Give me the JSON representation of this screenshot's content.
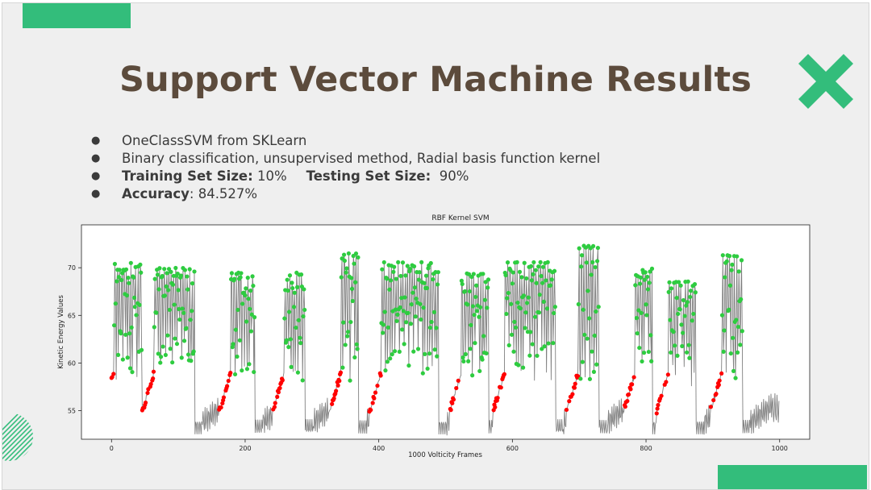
{
  "slide": {
    "title": "Support Vector Machine Results",
    "accent_color": "#33bd7b",
    "icons": [
      "x-icon",
      "diagonal-stripes"
    ]
  },
  "bullets": {
    "b1": {
      "text": "OneClassSVM from SKLearn"
    },
    "b2": {
      "text": "Binary classification, unsupervised method, Radial basis function kernel"
    },
    "b3": {
      "train_label": "Training Set Size:",
      "train_value": " 10%",
      "test_label": "Testing Set Size:",
      "test_value": "  90%"
    },
    "b4": {
      "acc_label": "Accuracy",
      "acc_value": ": 84.527%"
    }
  },
  "chart_data": {
    "type": "scatter",
    "title": "RBF Kernel SVM",
    "xlabel": "1000 Volticity Frames",
    "ylabel": "Kinetic Energy Values",
    "xlim": [
      -45,
      1045
    ],
    "ylim": [
      52,
      74.5
    ],
    "xticks": [
      0,
      200,
      400,
      600,
      800,
      1000
    ],
    "yticks": [
      55,
      60,
      65,
      70
    ],
    "grid": false,
    "line_color": "#808080",
    "series": [
      {
        "color": "#2ecc40"
      },
      {
        "color": "#ff0000"
      }
    ],
    "peaks": [
      {
        "x0": 0,
        "width": 48,
        "min": 54.5,
        "max": 70.5,
        "pattern": "spike"
      },
      {
        "x0": 60,
        "width": 65,
        "min": 55.5,
        "max": 72.0,
        "pattern": "dense"
      },
      {
        "x0": 175,
        "width": 40,
        "min": 55.0,
        "max": 71.5,
        "pattern": "dense"
      },
      {
        "x0": 255,
        "width": 35,
        "min": 55.0,
        "max": 71.5,
        "pattern": "dense"
      },
      {
        "x0": 340,
        "width": 30,
        "min": 54.5,
        "max": 71.5,
        "pattern": "spike"
      },
      {
        "x0": 400,
        "width": 90,
        "min": 55.0,
        "max": 72.8,
        "pattern": "dense"
      },
      {
        "x0": 520,
        "width": 45,
        "min": 54.5,
        "max": 71.5,
        "pattern": "dense"
      },
      {
        "x0": 585,
        "width": 80,
        "min": 55.0,
        "max": 72.8,
        "pattern": "dense"
      },
      {
        "x0": 695,
        "width": 35,
        "min": 54.5,
        "max": 72.3,
        "pattern": "spike"
      },
      {
        "x0": 780,
        "width": 30,
        "min": 55.0,
        "max": 72.0,
        "pattern": "dense"
      },
      {
        "x0": 830,
        "width": 45,
        "min": 54.5,
        "max": 70.5,
        "pattern": "dense"
      },
      {
        "x0": 910,
        "width": 35,
        "min": 55.0,
        "max": 73.7,
        "pattern": "dense"
      }
    ]
  }
}
